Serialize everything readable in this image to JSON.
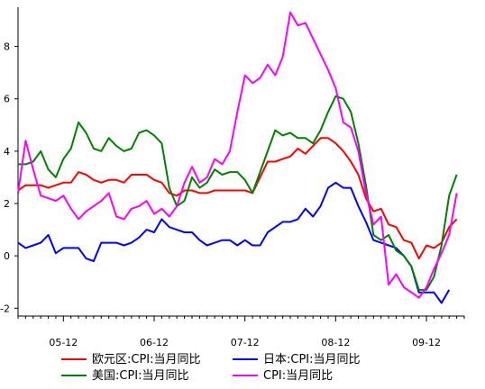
{
  "chart_data": {
    "type": "line",
    "title": "",
    "xlabel": "",
    "ylabel": "",
    "ylim": [
      -2.3,
      9.5
    ],
    "y_ticks": [
      -2,
      0,
      2,
      4,
      6,
      8
    ],
    "y_tick_labels": [
      "-2",
      "0",
      "2",
      "4",
      "6",
      "8"
    ],
    "x_ticks": [
      6,
      18,
      30,
      42,
      54
    ],
    "x_tick_labels": [
      "05-12",
      "06-12",
      "07-12",
      "08-12",
      "09-12"
    ],
    "grid": false,
    "legend_position": "bottom",
    "series": [
      {
        "name": "欧元区:CPI:当月同比",
        "color": "#ff0000",
        "points": [
          [
            0,
            2.5
          ],
          [
            1,
            2.7
          ],
          [
            2,
            2.7
          ],
          [
            3,
            2.7
          ],
          [
            4,
            2.6
          ],
          [
            5,
            2.7
          ],
          [
            6,
            2.8
          ],
          [
            7,
            2.8
          ],
          [
            8,
            3.2
          ],
          [
            9,
            3.1
          ],
          [
            10,
            2.9
          ],
          [
            11,
            2.8
          ],
          [
            12,
            2.9
          ],
          [
            13,
            2.9
          ],
          [
            14,
            2.8
          ],
          [
            15,
            3.1
          ],
          [
            16,
            3.1
          ],
          [
            17,
            3.1
          ],
          [
            18,
            2.9
          ],
          [
            19,
            2.8
          ],
          [
            20,
            2.4
          ],
          [
            21,
            2.3
          ],
          [
            22,
            2.5
          ],
          [
            23,
            2.5
          ],
          [
            24,
            2.4
          ],
          [
            25,
            2.4
          ],
          [
            26,
            2.5
          ],
          [
            27,
            2.5
          ],
          [
            28,
            2.5
          ],
          [
            29,
            2.5
          ],
          [
            30,
            2.5
          ],
          [
            31,
            2.4
          ],
          [
            32,
            3.0
          ],
          [
            33,
            3.6
          ],
          [
            34,
            3.6
          ],
          [
            35,
            3.7
          ],
          [
            36,
            3.8
          ],
          [
            37,
            4.1
          ],
          [
            38,
            3.9
          ],
          [
            39,
            4.2
          ],
          [
            40,
            4.5
          ],
          [
            41,
            4.5
          ],
          [
            42,
            4.3
          ],
          [
            43,
            4.0
          ],
          [
            44,
            3.6
          ],
          [
            45,
            3.1
          ],
          [
            46,
            2.2
          ],
          [
            47,
            1.7
          ],
          [
            48,
            1.8
          ],
          [
            49,
            1.2
          ],
          [
            50,
            1.1
          ],
          [
            51,
            0.6
          ],
          [
            52,
            0.5
          ],
          [
            53,
            -0.1
          ],
          [
            54,
            0.4
          ],
          [
            55,
            0.3
          ],
          [
            56,
            0.5
          ],
          [
            57,
            1.1
          ],
          [
            58,
            1.4
          ]
        ]
      },
      {
        "name": "日本:CPI:当月同比",
        "color": "#0000ff",
        "points": [
          [
            0,
            0.5
          ],
          [
            1,
            0.3
          ],
          [
            2,
            0.4
          ],
          [
            3,
            0.5
          ],
          [
            4,
            0.8
          ],
          [
            5,
            0.1
          ],
          [
            6,
            0.3
          ],
          [
            7,
            0.3
          ],
          [
            8,
            0.3
          ],
          [
            9,
            -0.1
          ],
          [
            10,
            -0.2
          ],
          [
            11,
            0.5
          ],
          [
            12,
            0.5
          ],
          [
            13,
            0.5
          ],
          [
            14,
            0.4
          ],
          [
            15,
            0.5
          ],
          [
            16,
            0.7
          ],
          [
            17,
            1.0
          ],
          [
            18,
            0.9
          ],
          [
            19,
            1.4
          ],
          [
            20,
            1.1
          ],
          [
            21,
            1.0
          ],
          [
            22,
            0.9
          ],
          [
            23,
            0.9
          ],
          [
            24,
            0.6
          ],
          [
            25,
            0.4
          ],
          [
            26,
            0.5
          ],
          [
            27,
            0.6
          ],
          [
            28,
            0.6
          ],
          [
            29,
            0.4
          ],
          [
            30,
            0.6
          ],
          [
            31,
            0.4
          ],
          [
            32,
            0.4
          ],
          [
            33,
            0.9
          ],
          [
            34,
            1.1
          ],
          [
            35,
            1.3
          ],
          [
            36,
            1.3
          ],
          [
            37,
            1.4
          ],
          [
            38,
            1.8
          ],
          [
            39,
            1.5
          ],
          [
            40,
            1.9
          ],
          [
            41,
            2.6
          ],
          [
            42,
            2.8
          ],
          [
            43,
            2.6
          ],
          [
            44,
            2.6
          ],
          [
            45,
            1.9
          ],
          [
            46,
            1.3
          ],
          [
            47,
            0.6
          ],
          [
            48,
            0.5
          ],
          [
            49,
            0.4
          ],
          [
            50,
            0.3
          ],
          [
            51,
            0.0
          ],
          [
            52,
            -0.4
          ],
          [
            53,
            -1.4
          ],
          [
            54,
            -1.4
          ],
          [
            55,
            -1.4
          ],
          [
            56,
            -1.8
          ],
          [
            57,
            -1.3
          ]
        ]
      },
      {
        "name": "美国:CPI:当月同比",
        "color": "#008000",
        "points": [
          [
            0,
            3.5
          ],
          [
            1,
            3.5
          ],
          [
            2,
            3.6
          ],
          [
            3,
            4.0
          ],
          [
            4,
            3.3
          ],
          [
            5,
            3.0
          ],
          [
            6,
            3.7
          ],
          [
            7,
            4.1
          ],
          [
            8,
            5.1
          ],
          [
            9,
            4.7
          ],
          [
            10,
            4.1
          ],
          [
            11,
            4.0
          ],
          [
            12,
            4.5
          ],
          [
            13,
            4.2
          ],
          [
            14,
            4.0
          ],
          [
            15,
            4.1
          ],
          [
            16,
            4.7
          ],
          [
            17,
            4.8
          ],
          [
            18,
            4.6
          ],
          [
            19,
            4.3
          ],
          [
            20,
            2.6
          ],
          [
            21,
            1.9
          ],
          [
            22,
            2.1
          ],
          [
            23,
            3.0
          ],
          [
            24,
            2.6
          ],
          [
            25,
            2.8
          ],
          [
            26,
            3.3
          ],
          [
            27,
            3.1
          ],
          [
            28,
            3.2
          ],
          [
            29,
            3.2
          ],
          [
            30,
            2.9
          ],
          [
            31,
            2.4
          ],
          [
            32,
            3.2
          ],
          [
            33,
            4.0
          ],
          [
            34,
            4.8
          ],
          [
            35,
            4.6
          ],
          [
            36,
            4.7
          ],
          [
            37,
            4.5
          ],
          [
            38,
            4.5
          ],
          [
            39,
            4.3
          ],
          [
            40,
            4.8
          ],
          [
            41,
            5.5
          ],
          [
            42,
            6.1
          ],
          [
            43,
            6.0
          ],
          [
            44,
            5.5
          ],
          [
            45,
            4.3
          ],
          [
            46,
            2.7
          ],
          [
            47,
            0.8
          ],
          [
            48,
            0.6
          ],
          [
            49,
            0.8
          ],
          [
            50,
            0.2
          ],
          [
            51,
            0.0
          ],
          [
            52,
            -0.4
          ],
          [
            53,
            -1.3
          ],
          [
            54,
            -1.3
          ],
          [
            55,
            -0.8
          ],
          [
            56,
            0.4
          ],
          [
            57,
            2.3
          ],
          [
            58,
            3.1
          ]
        ]
      },
      {
        "name": "CPI:当月同比",
        "color": "#ff00ff",
        "points": [
          [
            0,
            2.4
          ],
          [
            1,
            4.4
          ],
          [
            2,
            3.3
          ],
          [
            3,
            2.3
          ],
          [
            4,
            2.2
          ],
          [
            5,
            2.1
          ],
          [
            6,
            2.3
          ],
          [
            7,
            1.8
          ],
          [
            8,
            1.4
          ],
          [
            9,
            1.7
          ],
          [
            10,
            1.9
          ],
          [
            11,
            2.1
          ],
          [
            12,
            2.4
          ],
          [
            13,
            1.5
          ],
          [
            14,
            1.4
          ],
          [
            15,
            1.8
          ],
          [
            16,
            1.9
          ],
          [
            17,
            2.1
          ],
          [
            18,
            1.6
          ],
          [
            19,
            1.8
          ],
          [
            20,
            1.5
          ],
          [
            21,
            1.9
          ],
          [
            22,
            2.8
          ],
          [
            23,
            3.4
          ],
          [
            24,
            2.8
          ],
          [
            25,
            3.0
          ],
          [
            26,
            3.7
          ],
          [
            27,
            3.5
          ],
          [
            28,
            4.0
          ],
          [
            29,
            5.5
          ],
          [
            30,
            6.9
          ],
          [
            31,
            6.6
          ],
          [
            32,
            6.8
          ],
          [
            33,
            7.3
          ],
          [
            34,
            6.9
          ],
          [
            35,
            7.6
          ],
          [
            36,
            9.3
          ],
          [
            37,
            8.8
          ],
          [
            38,
            8.9
          ],
          [
            39,
            8.3
          ],
          [
            40,
            7.7
          ],
          [
            41,
            7.1
          ],
          [
            42,
            6.4
          ],
          [
            43,
            5.1
          ],
          [
            44,
            4.9
          ],
          [
            45,
            4.0
          ],
          [
            46,
            2.4
          ],
          [
            47,
            1.2
          ],
          [
            48,
            1.5
          ],
          [
            49,
            -1.1
          ],
          [
            50,
            -0.7
          ],
          [
            51,
            -1.2
          ],
          [
            52,
            -1.4
          ],
          [
            53,
            -1.6
          ],
          [
            54,
            -1.2
          ],
          [
            55,
            -0.5
          ],
          [
            56,
            0.1
          ],
          [
            57,
            0.8
          ],
          [
            58,
            2.4
          ]
        ]
      }
    ]
  }
}
